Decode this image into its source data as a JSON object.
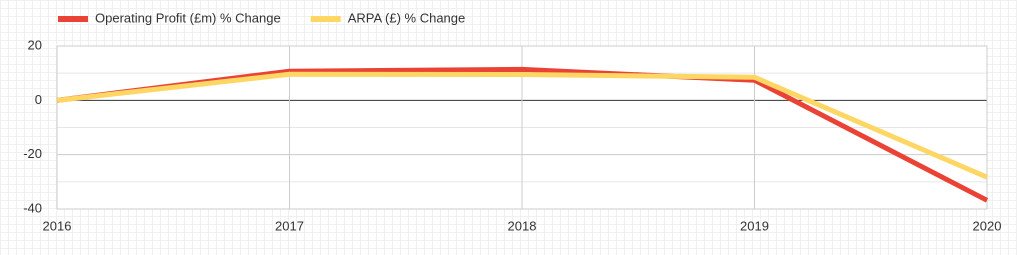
{
  "chart_data": {
    "type": "line",
    "categories": [
      "2016",
      "2017",
      "2018",
      "2019",
      "2020"
    ],
    "series": [
      {
        "name": "Operating Profit (£m) % Change",
        "color": "#ea4335",
        "values": [
          0,
          10.7,
          11.4,
          7.4,
          -36.8
        ]
      },
      {
        "name": "ARPA (£) % Change",
        "color": "#fdd663",
        "values": [
          0,
          9.6,
          9.5,
          8.5,
          -28.3
        ]
      }
    ],
    "ylim": [
      -40,
      20
    ],
    "yticks": [
      20,
      0,
      -20,
      -40
    ],
    "grid": true,
    "legend": "top"
  }
}
